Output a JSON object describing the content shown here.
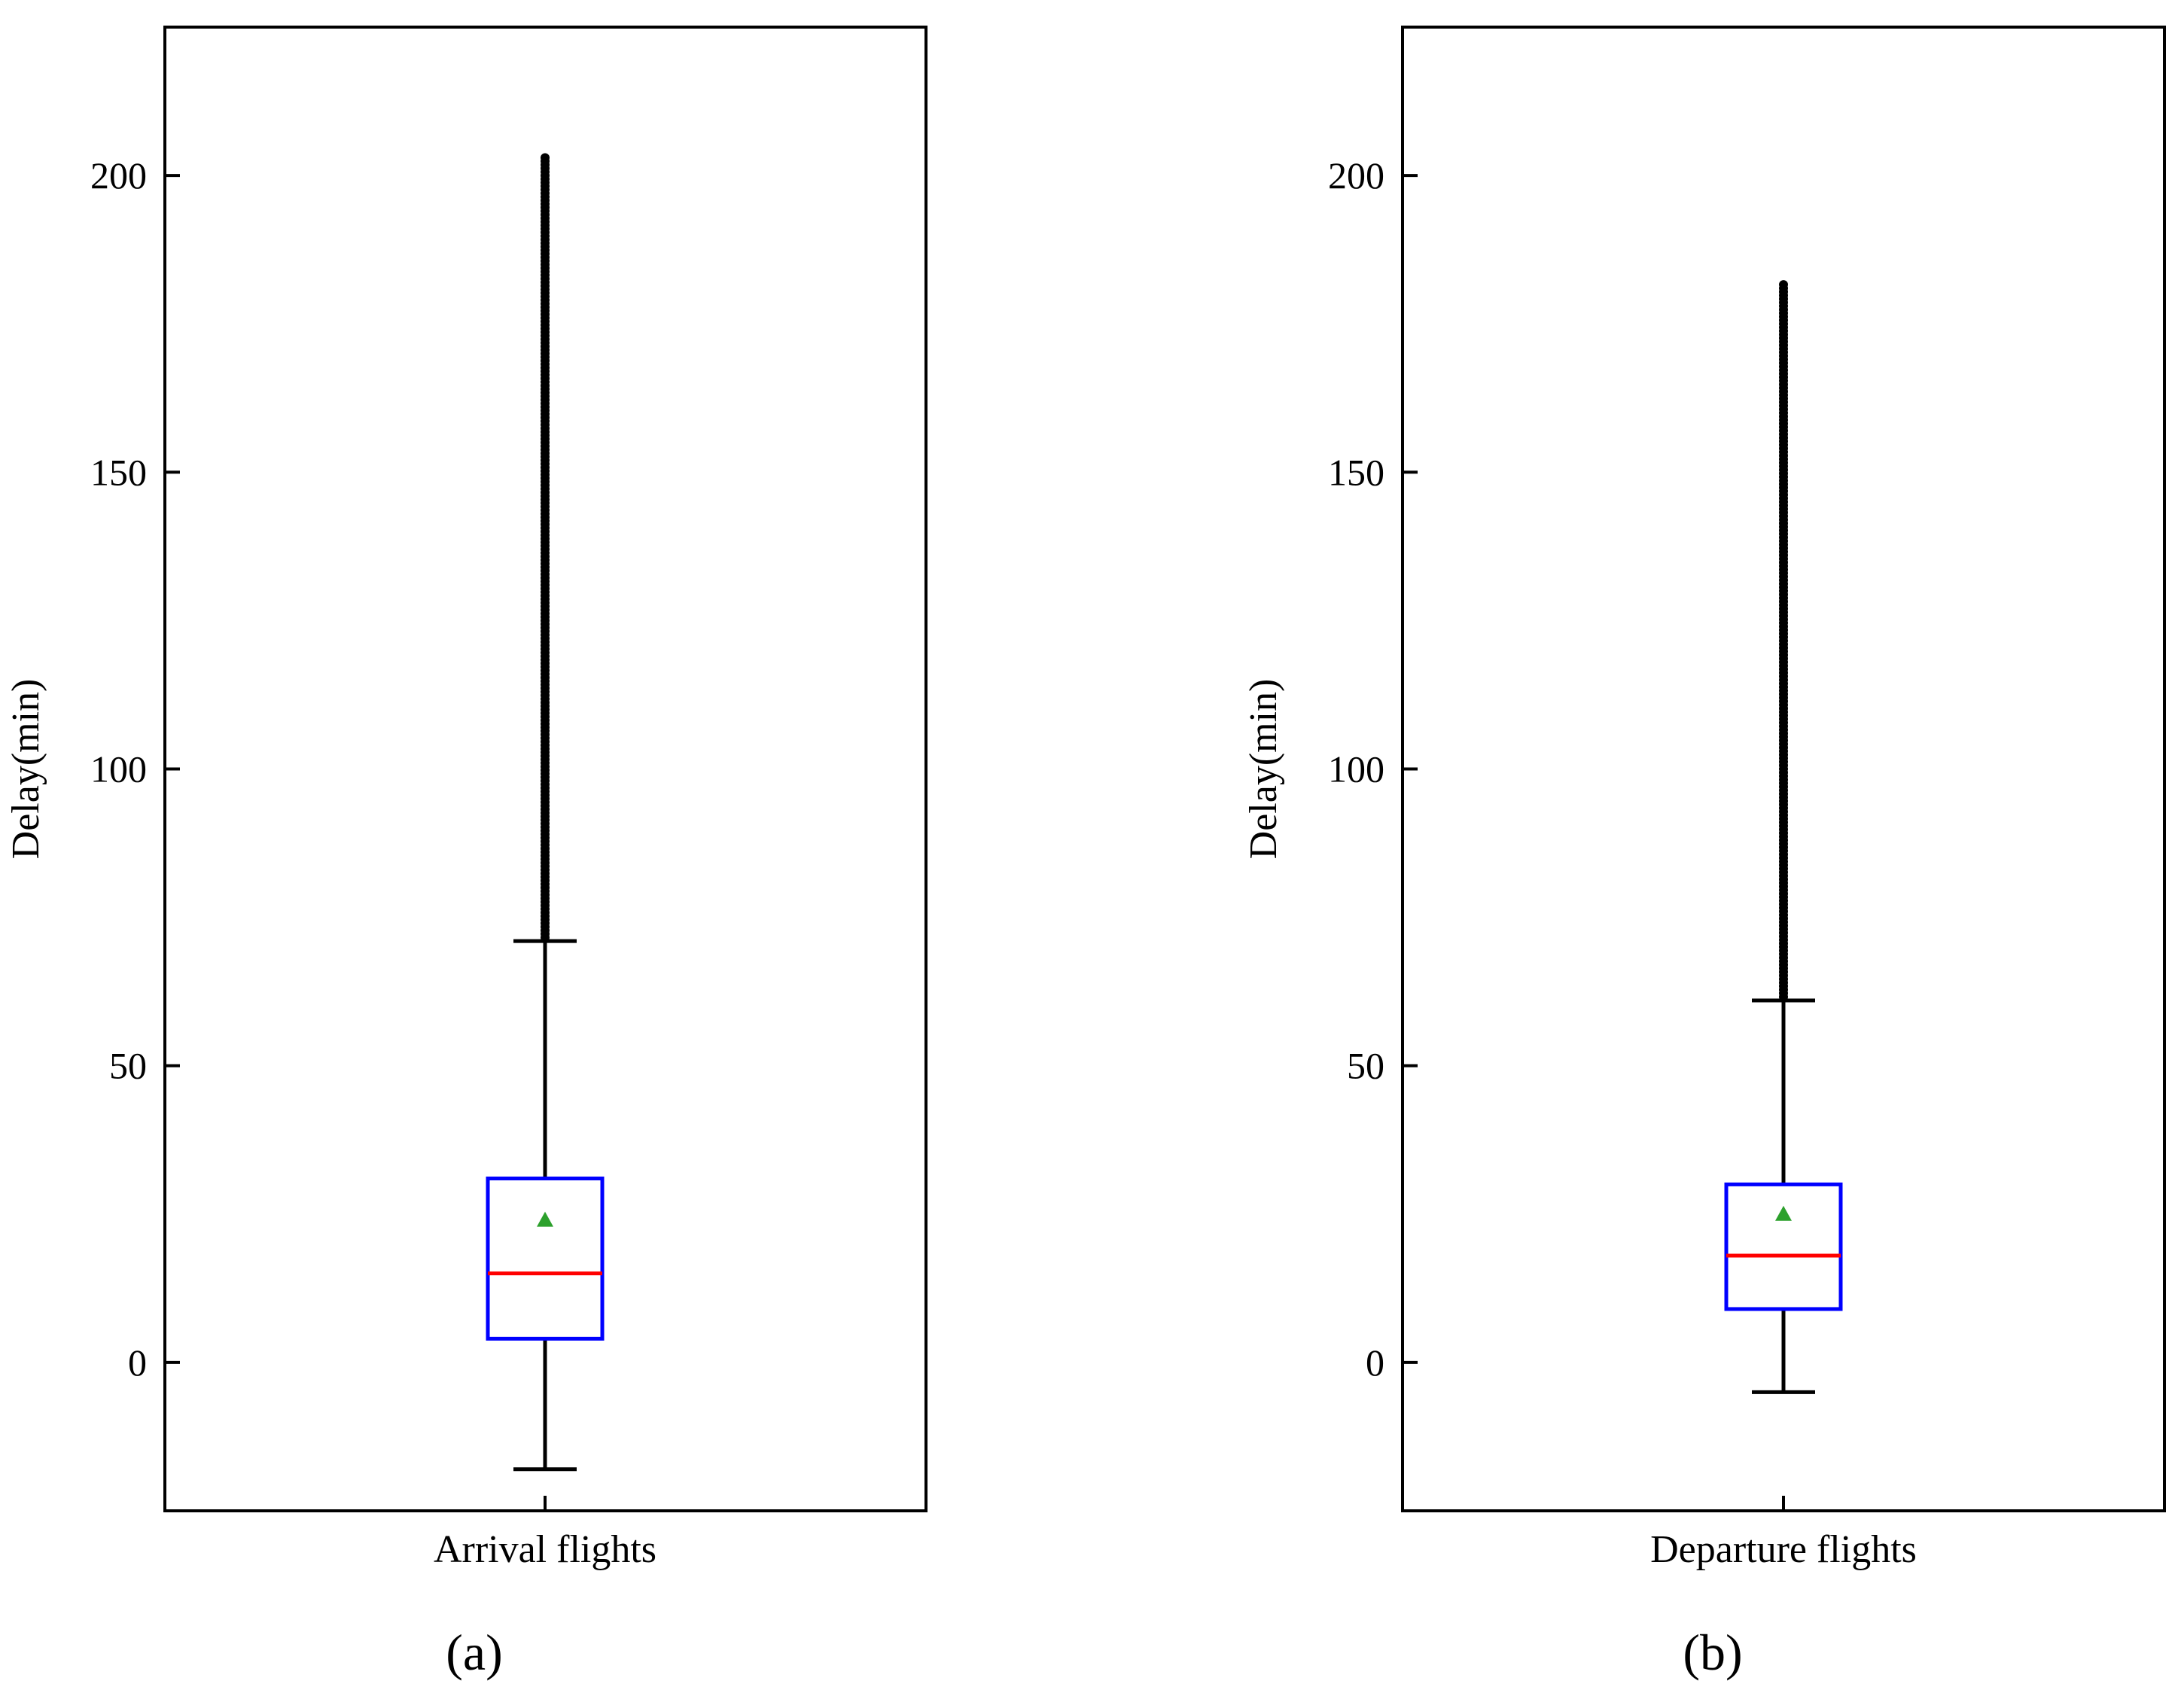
{
  "chart_data": [
    {
      "type": "box",
      "panel_label": "(a)",
      "category": "Arrival flights",
      "ylabel": "Delay(min)",
      "ylim": [
        -25,
        225
      ],
      "yticks": [
        0,
        50,
        100,
        150,
        200
      ],
      "grid": false,
      "whisker_low": -18,
      "q1": 4,
      "median": 15,
      "q3": 31,
      "whisker_high": 71,
      "mean": 24,
      "outliers_range": [
        71,
        203
      ],
      "colors": {
        "box": "#0000ff",
        "median": "#ff0000",
        "mean": "#2ca02c",
        "whisker": "#000000",
        "outliers": "#000000"
      }
    },
    {
      "type": "box",
      "panel_label": "(b)",
      "category": "Departure flights",
      "ylabel": "Delay(min)",
      "ylim": [
        -25,
        225
      ],
      "yticks": [
        0,
        50,
        100,
        150,
        200
      ],
      "grid": false,
      "whisker_low": -5,
      "q1": 9,
      "median": 18,
      "q3": 30,
      "whisker_high": 61,
      "mean": 25,
      "outliers_range": [
        61,
        182
      ],
      "colors": {
        "box": "#0000ff",
        "median": "#ff0000",
        "mean": "#2ca02c",
        "whisker": "#000000",
        "outliers": "#000000"
      }
    }
  ]
}
